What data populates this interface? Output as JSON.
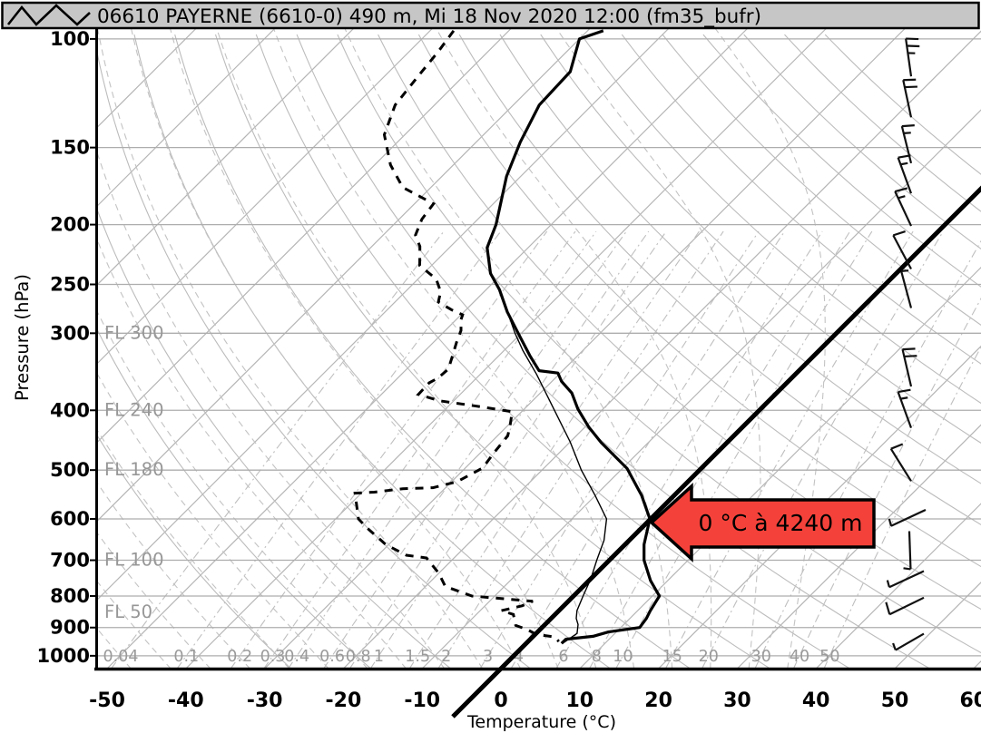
{
  "title_bar": {
    "title": "06610 PAYERNE (6610-0) 490 m, Mi 18 Nov 2020 12:00 (fm35_bufr)"
  },
  "axes": {
    "pressure_axis_label": "Pressure (hPa)",
    "temperature_axis_label": "Temperature (°C)",
    "pressure_ticks": [
      100,
      150,
      200,
      250,
      300,
      400,
      500,
      600,
      700,
      800,
      900,
      1000
    ],
    "temperature_ticks": [
      -50,
      -40,
      -30,
      -20,
      -10,
      0,
      10,
      20,
      30,
      40,
      50,
      60
    ],
    "flight_level_labels": [
      {
        "label": "FL 300",
        "pressure": 300
      },
      {
        "label": "FL 240",
        "pressure": 400
      },
      {
        "label": "FL 180",
        "pressure": 500
      },
      {
        "label": "FL 100",
        "pressure": 700
      },
      {
        "label": "FL 50",
        "pressure": 850
      }
    ],
    "mixing_ratio_labels": [
      0.04,
      0.1,
      0.2,
      0.3,
      0.4,
      0.6,
      0.8,
      1,
      1.5,
      2,
      3,
      4,
      6,
      8,
      10,
      15,
      20,
      30,
      40,
      50
    ]
  },
  "annotation": {
    "label": "0 °C à 4240 m",
    "freezing_level_m": 4240,
    "fill_color": "#f4423a"
  },
  "chart_data": {
    "type": "line",
    "projection": "skew-T log-P",
    "title": "06610 PAYERNE (6610-0) 490 m, Mi 18 Nov 2020 12:00 (fm35_bufr)",
    "skew_deg": 45,
    "grid": "on",
    "x_axis": {
      "label": "Temperature (°C)",
      "min": -50,
      "max": 60,
      "ticks": [
        -50,
        -40,
        -30,
        -20,
        -10,
        0,
        10,
        20,
        30,
        40,
        50,
        60
      ]
    },
    "y_axis": {
      "label": "Pressure (hPa)",
      "min": 100,
      "max": 1050,
      "scale": "log",
      "ticks": [
        100,
        150,
        200,
        250,
        300,
        400,
        500,
        600,
        700,
        800,
        900,
        1000
      ]
    },
    "highlight_isotherm_c": 0,
    "series": [
      {
        "name": "temperature",
        "style": "solid-thick",
        "points_p_t": [
          [
            97,
            -68
          ],
          [
            100,
            -70
          ],
          [
            113,
            -67
          ],
          [
            128,
            -66.7
          ],
          [
            147,
            -64.4
          ],
          [
            167,
            -61.8
          ],
          [
            200,
            -57
          ],
          [
            218,
            -55.2
          ],
          [
            240,
            -51.5
          ],
          [
            255,
            -48.3
          ],
          [
            277,
            -44.5
          ],
          [
            300,
            -40.4
          ],
          [
            326,
            -36.1
          ],
          [
            345,
            -33
          ],
          [
            348,
            -30.3
          ],
          [
            359,
            -28.8
          ],
          [
            375,
            -26
          ],
          [
            398,
            -23.2
          ],
          [
            426,
            -19.5
          ],
          [
            451,
            -16
          ],
          [
            497,
            -9.4
          ],
          [
            550,
            -4.1
          ],
          [
            600,
            -0.1
          ],
          [
            660,
            2.4
          ],
          [
            700,
            4.4
          ],
          [
            755,
            7.8
          ],
          [
            800,
            10.9
          ],
          [
            845,
            11.6
          ],
          [
            870,
            12.1
          ],
          [
            900,
            12.4
          ],
          [
            915,
            9
          ],
          [
            930,
            7.6
          ],
          [
            940,
            4.5
          ],
          [
            955,
            4.5
          ]
        ]
      },
      {
        "name": "dewpoint",
        "style": "dashed-thick",
        "points_p_t": [
          [
            97,
            -87
          ],
          [
            105,
            -86.3
          ],
          [
            114,
            -85.8
          ],
          [
            128,
            -85
          ],
          [
            143,
            -82.6
          ],
          [
            160,
            -78
          ],
          [
            174,
            -73.6
          ],
          [
            185,
            -67.6
          ],
          [
            196,
            -67.1
          ],
          [
            208,
            -65.9
          ],
          [
            217,
            -63.9
          ],
          [
            233,
            -61.5
          ],
          [
            245,
            -57.7
          ],
          [
            257,
            -55.5
          ],
          [
            267,
            -54.5
          ],
          [
            275,
            -51.8
          ],
          [
            280,
            -49.8
          ],
          [
            285,
            -49.4
          ],
          [
            297,
            -48
          ],
          [
            310,
            -47.1
          ],
          [
            326,
            -45.9
          ],
          [
            343,
            -44.7
          ],
          [
            355,
            -44.9
          ],
          [
            361,
            -45.4
          ],
          [
            377,
            -45.3
          ],
          [
            386,
            -41.8
          ],
          [
            395,
            -35.6
          ],
          [
            402,
            -31.2
          ],
          [
            425,
            -29.6
          ],
          [
            440,
            -28.7
          ],
          [
            468,
            -28.3
          ],
          [
            496,
            -27.8
          ],
          [
            522,
            -29.3
          ],
          [
            534,
            -31.6
          ],
          [
            536,
            -35.3
          ],
          [
            543,
            -38.5
          ],
          [
            545,
            -40.8
          ],
          [
            600,
            -37.1
          ],
          [
            622,
            -34.7
          ],
          [
            660,
            -30.4
          ],
          [
            687,
            -26.4
          ],
          [
            694,
            -23.5
          ],
          [
            735,
            -20
          ],
          [
            772,
            -17.5
          ],
          [
            800,
            -12.9
          ],
          [
            816,
            -4.5
          ],
          [
            830,
            -5.3
          ],
          [
            845,
            -7.3
          ],
          [
            857,
            -5.3
          ],
          [
            893,
            -3.6
          ],
          [
            907,
            -1.6
          ],
          [
            923,
            0.1
          ],
          [
            932,
            2.8
          ],
          [
            948,
            3.9
          ]
        ]
      },
      {
        "name": "wet_bulb",
        "style": "solid-thin",
        "points_p_t": [
          [
            278,
            -44.3
          ],
          [
            300,
            -40.8
          ],
          [
            320,
            -37.6
          ],
          [
            350,
            -32.8
          ],
          [
            400,
            -26
          ],
          [
            450,
            -20
          ],
          [
            500,
            -15
          ],
          [
            550,
            -10
          ],
          [
            600,
            -5.6
          ],
          [
            650,
            -3.2
          ],
          [
            700,
            -1.6
          ],
          [
            750,
            0
          ],
          [
            800,
            1.2
          ],
          [
            845,
            2.3
          ],
          [
            870,
            3.2
          ],
          [
            890,
            4.2
          ],
          [
            920,
            5.2
          ],
          [
            955,
            4.6
          ]
        ]
      }
    ],
    "wind_barbs": [
      {
        "pressure": 115,
        "angle": -8,
        "feathers": [
          "full",
          "full",
          "half"
        ]
      },
      {
        "pressure": 134,
        "angle": -12,
        "feathers": [
          "full",
          "full"
        ]
      },
      {
        "pressure": 159,
        "angle": -14,
        "feathers": [
          "full",
          "half"
        ]
      },
      {
        "pressure": 178,
        "angle": -20,
        "feathers": [
          "full",
          "half"
        ]
      },
      {
        "pressure": 201,
        "angle": -25,
        "feathers": [
          "full",
          "half"
        ]
      },
      {
        "pressure": 236,
        "angle": -28,
        "feathers": [
          "full"
        ]
      },
      {
        "pressure": 273,
        "angle": -15,
        "feathers": [
          "half"
        ]
      },
      {
        "pressure": 366,
        "angle": -13,
        "feathers": [
          "full",
          "full"
        ]
      },
      {
        "pressure": 427,
        "angle": -20,
        "feathers": [
          "full",
          "half"
        ]
      },
      {
        "pressure": 521,
        "angle": -32,
        "feathers": [
          "full"
        ]
      },
      {
        "pressure": 580,
        "angle": 245,
        "feathers": [
          "half"
        ],
        "x": 1020
      },
      {
        "pressure": 628,
        "angle": 178,
        "feathers": [
          "half"
        ],
        "x": 1002
      },
      {
        "pressure": 729,
        "angle": 245,
        "feathers": [
          "half"
        ],
        "x": 1018
      },
      {
        "pressure": 805,
        "angle": 244,
        "feathers": [
          "full"
        ],
        "x": 1018
      },
      {
        "pressure": 921,
        "angle": 240,
        "feathers": [
          "half"
        ],
        "x": 1018,
        "length": 36
      }
    ]
  }
}
